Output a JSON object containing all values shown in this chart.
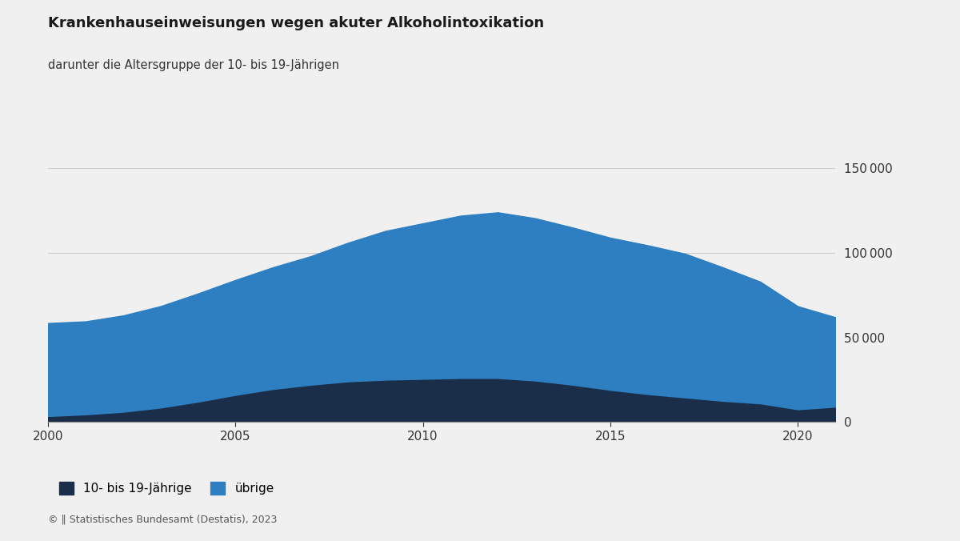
{
  "title": "Krankenhauseinweisungen wegen akuter Alkoholintoxikation",
  "subtitle": "darunter die Altersgruppe der 10- bis 19-Jährigen",
  "years": [
    2000,
    2001,
    2002,
    2003,
    2004,
    2005,
    2006,
    2007,
    2008,
    2009,
    2010,
    2011,
    2012,
    2013,
    2014,
    2015,
    2016,
    2017,
    2018,
    2019,
    2020,
    2021
  ],
  "youth_10_19": [
    3500,
    4500,
    6000,
    8500,
    12000,
    16000,
    19500,
    22000,
    24000,
    25000,
    25500,
    26000,
    26000,
    24500,
    22000,
    19000,
    16500,
    14500,
    12500,
    11000,
    7500,
    9000
  ],
  "other": [
    55000,
    55000,
    57000,
    60000,
    64000,
    68000,
    72000,
    76000,
    82000,
    88000,
    92000,
    96000,
    98000,
    96000,
    93000,
    90000,
    88000,
    85000,
    79000,
    72000,
    61000,
    53000
  ],
  "color_youth": "#1a2e4a",
  "color_other": "#2d7fc1",
  "background_color": "#f0f0f0",
  "footer_text": "© 🇩🇪 Statistisches Bundesamt (Destatis), 2023",
  "legend_youth": "10- bis 19-Jährige",
  "legend_other": "übrige",
  "ylim": [
    0,
    160000
  ],
  "yticks": [
    0,
    50000,
    100000,
    150000
  ],
  "xticks": [
    2000,
    2005,
    2010,
    2015,
    2020
  ]
}
